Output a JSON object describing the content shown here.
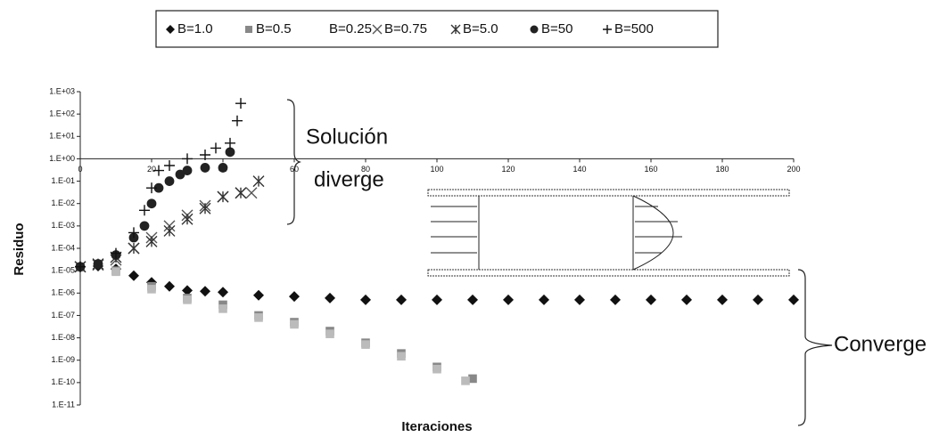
{
  "chart_data": {
    "type": "scatter",
    "x_label": "Iteraciones",
    "y_label": "Residuo",
    "log_y": true,
    "legend": "top",
    "annotations": [
      "Solución",
      "diverge",
      "Converge"
    ],
    "xlim": [
      0,
      200
    ],
    "xticks": [
      0,
      20,
      40,
      60,
      80,
      100,
      120,
      140,
      160,
      180,
      200
    ],
    "ylim": [
      1e-11,
      1000
    ],
    "yticks": [
      {
        "value": 1000,
        "label": "1.E+03"
      },
      {
        "value": 100,
        "label": "1.E+02"
      },
      {
        "value": 10,
        "label": "1.E+01"
      },
      {
        "value": 1,
        "label": "1.E+00"
      },
      {
        "value": 0.1,
        "label": "1.E-01"
      },
      {
        "value": 0.01,
        "label": "1.E-02"
      },
      {
        "value": 0.001,
        "label": "1.E-03"
      },
      {
        "value": 0.0001,
        "label": "1.E-04"
      },
      {
        "value": 1e-05,
        "label": "1.E-05"
      },
      {
        "value": 1e-06,
        "label": "1.E-06"
      },
      {
        "value": 1e-07,
        "label": "1.E-07"
      },
      {
        "value": 1e-08,
        "label": "1.E-08"
      },
      {
        "value": 1e-09,
        "label": "1.E-09"
      },
      {
        "value": 1e-10,
        "label": "1.E-10"
      },
      {
        "value": 1e-11,
        "label": "1.E-11"
      }
    ],
    "series": [
      {
        "name": "B=1.0",
        "marker": "diamond",
        "color": "#111111",
        "x": [
          0,
          5,
          10,
          15,
          20,
          25,
          30,
          35,
          40,
          50,
          60,
          70,
          80,
          90,
          100,
          110,
          120,
          130,
          140,
          150,
          160,
          170,
          180,
          190,
          200
        ],
        "values": [
          1.5e-05,
          1.6e-05,
          1.2e-05,
          6e-06,
          3e-06,
          2e-06,
          1.3e-06,
          1.2e-06,
          1.1e-06,
          8e-07,
          7e-07,
          6e-07,
          5e-07,
          5e-07,
          5e-07,
          5e-07,
          5e-07,
          5e-07,
          5e-07,
          5e-07,
          5e-07,
          5e-07,
          5e-07,
          5e-07,
          5e-07
        ]
      },
      {
        "name": "B=0.5",
        "marker": "square",
        "color": "#888888",
        "x": [
          0,
          10,
          20,
          30,
          40,
          50,
          60,
          70,
          80,
          90,
          100,
          110
        ],
        "values": [
          1.5e-05,
          1e-05,
          2e-06,
          6e-07,
          3e-07,
          1e-07,
          5e-08,
          2e-08,
          6e-09,
          2e-09,
          5e-10,
          1.5e-10
        ]
      },
      {
        "name": "B=0.25",
        "marker": "square",
        "color": "#bbbbbb",
        "x": [
          0,
          10,
          20,
          30,
          40,
          50,
          60,
          70,
          80,
          90,
          100,
          108
        ],
        "values": [
          1.4e-05,
          9e-06,
          1.5e-06,
          5e-07,
          2e-07,
          8e-08,
          4e-08,
          1.5e-08,
          5e-09,
          1.5e-09,
          4e-10,
          1.2e-10
        ]
      },
      {
        "name": "B=0.75",
        "marker": "x",
        "color": "#555555",
        "x": [
          0,
          5,
          10,
          15,
          20,
          25,
          30,
          35,
          40,
          45,
          48
        ],
        "values": [
          1.5e-05,
          1.8e-05,
          3e-05,
          0.0001,
          0.0003,
          0.001,
          0.003,
          0.008,
          0.02,
          0.03,
          0.03
        ]
      },
      {
        "name": "B=5.0",
        "marker": "asterisk",
        "color": "#333333",
        "x": [
          0,
          5,
          10,
          15,
          20,
          25,
          30,
          35,
          40,
          45,
          50
        ],
        "values": [
          1.5e-05,
          2e-05,
          4e-05,
          0.0001,
          0.0002,
          0.0006,
          0.002,
          0.006,
          0.02,
          0.03,
          0.1
        ]
      },
      {
        "name": "B=50",
        "marker": "circle",
        "color": "#222222",
        "x": [
          0,
          5,
          10,
          15,
          18,
          20,
          22,
          25,
          28,
          30,
          35,
          40,
          42
        ],
        "values": [
          1.5e-05,
          2e-05,
          5e-05,
          0.0003,
          0.001,
          0.01,
          0.05,
          0.1,
          0.2,
          0.3,
          0.4,
          0.4,
          2
        ]
      },
      {
        "name": "B=500",
        "marker": "plus",
        "color": "#111111",
        "x": [
          0,
          10,
          15,
          18,
          20,
          22,
          25,
          30,
          35,
          38,
          42,
          44,
          45
        ],
        "values": [
          1.5e-05,
          6e-05,
          0.0005,
          0.005,
          0.05,
          0.3,
          0.5,
          1,
          1.5,
          3,
          5,
          50,
          300
        ]
      }
    ]
  }
}
